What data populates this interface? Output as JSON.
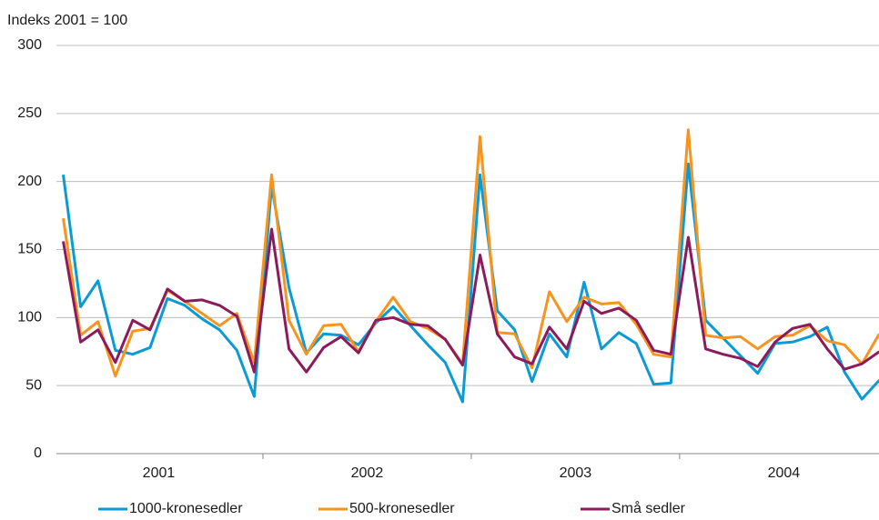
{
  "chart_data": {
    "type": "line",
    "y_axis_label": "Indeks 2001 = 100",
    "categories": [
      null,
      null,
      null,
      null,
      null,
      null,
      null,
      null,
      null,
      null,
      null,
      null,
      null,
      null,
      null,
      null,
      null,
      null,
      null,
      null,
      null,
      null,
      null,
      null,
      null,
      null,
      null,
      null,
      null,
      null,
      null,
      null,
      null,
      null,
      null,
      null,
      null,
      null,
      null,
      null,
      null,
      null,
      null,
      null,
      null,
      null,
      null,
      null
    ],
    "groups": [
      "2001",
      "2002",
      "2003",
      "2004"
    ],
    "ylim": [
      0,
      300
    ],
    "yticks": [
      0,
      50,
      100,
      150,
      200,
      250,
      300
    ],
    "grid": true,
    "legend": "bottom",
    "series": [
      {
        "name": "1000-kronesedler",
        "color": "#0a9bd7",
        "values": [
          205,
          108,
          127,
          76,
          73,
          78,
          114,
          109,
          99,
          91,
          76,
          42,
          197,
          122,
          74,
          88,
          87,
          80,
          96,
          108,
          94,
          80,
          67,
          38,
          205,
          105,
          91,
          53,
          88,
          71,
          126,
          77,
          89,
          81,
          51,
          52,
          213,
          98,
          85,
          72,
          59,
          81,
          82,
          86,
          93,
          60,
          40,
          54
        ]
      },
      {
        "name": "500-kronesedler",
        "color": "#f7941d",
        "values": [
          173,
          87,
          97,
          57,
          90,
          92,
          120,
          112,
          103,
          94,
          103,
          67,
          205,
          98,
          73,
          94,
          95,
          75,
          97,
          115,
          97,
          92,
          84,
          66,
          233,
          89,
          88,
          63,
          119,
          97,
          115,
          110,
          111,
          95,
          73,
          71,
          238,
          87,
          85,
          86,
          77,
          86,
          87,
          94,
          83,
          80,
          66,
          88
        ]
      },
      {
        "name": "Små sedler",
        "color": "#8c1b5c",
        "values": [
          156,
          82,
          91,
          67,
          98,
          91,
          121,
          112,
          113,
          109,
          101,
          60,
          165,
          77,
          60,
          78,
          86,
          74,
          98,
          100,
          95,
          94,
          84,
          65,
          146,
          88,
          71,
          66,
          93,
          77,
          112,
          103,
          107,
          98,
          76,
          73,
          159,
          77,
          73,
          70,
          64,
          82,
          92,
          95,
          77,
          62,
          66,
          75
        ]
      }
    ]
  }
}
